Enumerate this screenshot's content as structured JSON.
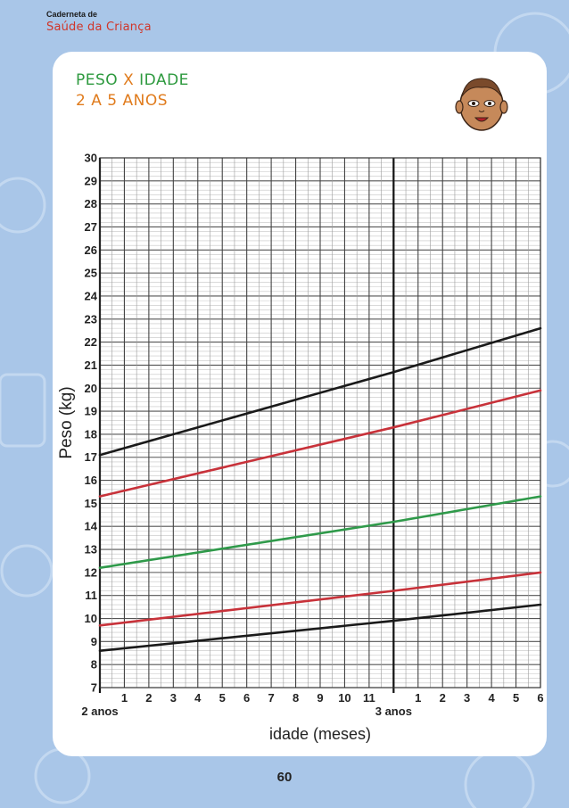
{
  "header": {
    "small": "Caderneta de",
    "brand": "Saúde da Criança"
  },
  "title": {
    "line1_a": "PESO ",
    "line1_x": "X",
    "line1_b": " IDADE",
    "line2": "2 A 5 ANOS"
  },
  "illustration": "baby-face-icon",
  "page_number": "60",
  "colors": {
    "background": "#a9c6e8",
    "title_green": "#2e9a3f",
    "title_orange": "#e07b1c",
    "brand_red": "#d0362a",
    "black_curve": "#1a1a1a",
    "red_curve": "#c8323a",
    "green_curve": "#2f9a4a"
  },
  "chart_data": {
    "type": "line",
    "title": "",
    "xlabel": "idade (meses)",
    "ylabel": "Peso (kg)",
    "ylim": [
      7,
      30
    ],
    "y_ticks": [
      "7",
      "8",
      "9",
      "10",
      "11",
      "12",
      "13",
      "14",
      "15",
      "16",
      "17",
      "18",
      "19",
      "20",
      "21",
      "22",
      "23",
      "24",
      "25",
      "26",
      "27",
      "28",
      "29",
      "30"
    ],
    "x_tick_labels": [
      "",
      "1",
      "2",
      "3",
      "4",
      "5",
      "6",
      "7",
      "8",
      "9",
      "10",
      "11",
      "",
      "1",
      "2",
      "3",
      "4",
      "5",
      "6"
    ],
    "x_year_labels": [
      {
        "label": "2 anos",
        "month": 0
      },
      {
        "label": "3 anos",
        "month": 12
      }
    ],
    "xlim": [
      0,
      18
    ],
    "grid": true,
    "series": [
      {
        "color": "black",
        "x": [
          0,
          12,
          18
        ],
        "y": [
          17.1,
          20.7,
          22.6
        ]
      },
      {
        "color": "red",
        "x": [
          0,
          12,
          18
        ],
        "y": [
          15.3,
          18.3,
          19.9
        ]
      },
      {
        "color": "green",
        "x": [
          0,
          12,
          18
        ],
        "y": [
          12.2,
          14.2,
          15.3
        ]
      },
      {
        "color": "red",
        "x": [
          0,
          12,
          18
        ],
        "y": [
          9.7,
          11.2,
          12.0
        ]
      },
      {
        "color": "black",
        "x": [
          0,
          12,
          18
        ],
        "y": [
          8.6,
          9.9,
          10.6
        ]
      }
    ]
  }
}
